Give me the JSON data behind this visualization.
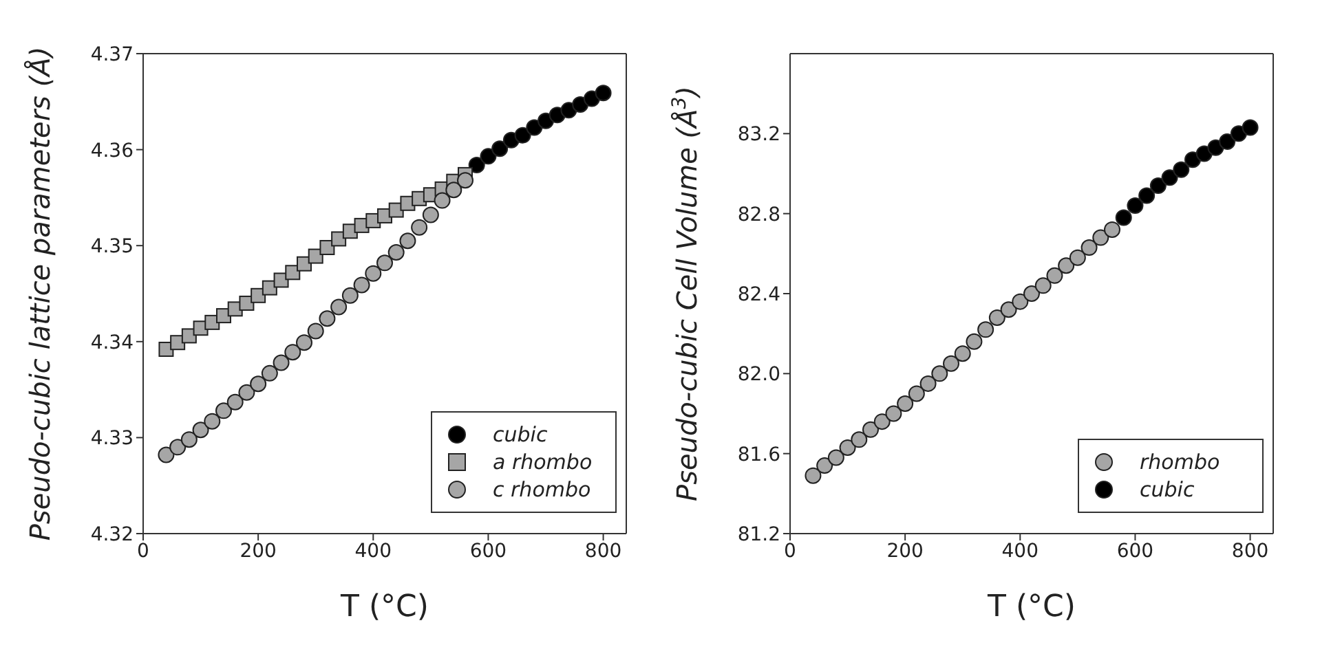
{
  "chart_data": [
    {
      "type": "scatter",
      "xlabel": "T (°C)",
      "ylabel": "Pseudo-cubic lattice parameters (Å)",
      "xlim": [
        0,
        840
      ],
      "xticks": [
        0,
        200,
        400,
        600,
        800
      ],
      "ylim": [
        4.32,
        4.37
      ],
      "yticks": [
        4.32,
        4.33,
        4.34,
        4.35,
        4.36,
        4.37
      ],
      "grid": false,
      "legend": "bottom right",
      "series": [
        {
          "name": "cubic",
          "color": "#000000",
          "marker": "circle",
          "x": [
            580,
            600,
            620,
            640,
            660,
            680,
            700,
            720,
            740,
            760,
            780,
            800
          ],
          "values": [
            4.3584,
            4.3593,
            4.3601,
            4.361,
            4.3615,
            4.3623,
            4.363,
            4.3636,
            4.3641,
            4.3647,
            4.3653,
            4.3659
          ]
        },
        {
          "name": "a rhombo",
          "color": "#a6a6a6",
          "marker": "square",
          "x": [
            40,
            60,
            80,
            100,
            120,
            140,
            160,
            180,
            200,
            220,
            240,
            260,
            280,
            300,
            320,
            340,
            360,
            380,
            400,
            420,
            440,
            460,
            480,
            500,
            520,
            540,
            560
          ],
          "values": [
            4.3392,
            4.3399,
            4.3406,
            4.3414,
            4.342,
            4.3427,
            4.3434,
            4.344,
            4.3448,
            4.3456,
            4.3464,
            4.3472,
            4.3481,
            4.3489,
            4.3498,
            4.3507,
            4.3515,
            4.3521,
            4.3526,
            4.3531,
            4.3537,
            4.3544,
            4.3549,
            4.3553,
            4.3559,
            4.3567,
            4.3574
          ]
        },
        {
          "name": "c rhombo",
          "color": "#a6a6a6",
          "marker": "circle",
          "x": [
            40,
            60,
            80,
            100,
            120,
            140,
            160,
            180,
            200,
            220,
            240,
            260,
            280,
            300,
            320,
            340,
            360,
            380,
            400,
            420,
            440,
            460,
            480,
            500,
            520,
            540,
            560
          ],
          "values": [
            4.3282,
            4.329,
            4.3298,
            4.3308,
            4.3317,
            4.3328,
            4.3337,
            4.3347,
            4.3356,
            4.3367,
            4.3378,
            4.3389,
            4.3399,
            4.3411,
            4.3424,
            4.3436,
            4.3448,
            4.3459,
            4.3471,
            4.3482,
            4.3493,
            4.3505,
            4.3519,
            4.3532,
            4.3547,
            4.3558,
            4.3568
          ]
        }
      ]
    },
    {
      "type": "scatter",
      "xlabel": "T (°C)",
      "ylabel": "Pseudo-cubic Cell Volume (Å$^{3}$)",
      "xlim": [
        0,
        840
      ],
      "xticks": [
        0,
        200,
        400,
        600,
        800
      ],
      "ylim": [
        81.2,
        83.6
      ],
      "yticks": [
        81.2,
        81.6,
        {
          "value": 82,
          "label": "82.0"
        },
        82.4,
        82.8,
        83.2
      ],
      "grid": false,
      "legend": "bottom right",
      "series": [
        {
          "name": "rhombo",
          "color": "#a6a6a6",
          "marker": "circle",
          "x": [
            40,
            60,
            80,
            100,
            120,
            140,
            160,
            180,
            200,
            220,
            240,
            260,
            280,
            300,
            320,
            340,
            360,
            380,
            400,
            420,
            440,
            460,
            480,
            500,
            520,
            540,
            560
          ],
          "values": [
            81.49,
            81.54,
            81.58,
            81.63,
            81.67,
            81.72,
            81.76,
            81.8,
            81.85,
            81.9,
            81.95,
            82.0,
            82.05,
            82.1,
            82.16,
            82.22,
            82.28,
            82.32,
            82.36,
            82.4,
            82.44,
            82.49,
            82.54,
            82.58,
            82.63,
            82.68,
            82.72
          ]
        },
        {
          "name": "cubic",
          "color": "#000000",
          "marker": "circle",
          "x": [
            580,
            600,
            620,
            640,
            660,
            680,
            700,
            720,
            740,
            760,
            780,
            800
          ],
          "values": [
            82.78,
            82.84,
            82.89,
            82.94,
            82.98,
            83.02,
            83.07,
            83.1,
            83.13,
            83.16,
            83.2,
            83.23
          ]
        }
      ]
    }
  ]
}
